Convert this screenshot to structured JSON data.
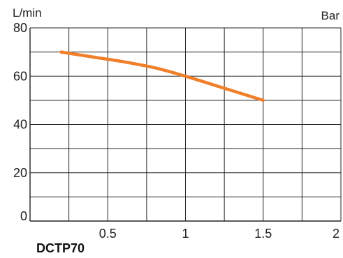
{
  "chart_data": {
    "type": "line",
    "title": "",
    "ylabel": "L/min",
    "xlabel": "Bar",
    "model": "DCTP70",
    "xlim": [
      0,
      2
    ],
    "ylim": [
      0,
      80
    ],
    "x_ticks": [
      0.5,
      1,
      1.5,
      2
    ],
    "x_tick_labels": [
      "0.5",
      "1",
      "1.5",
      "2"
    ],
    "x_grid_step": 0.25,
    "y_ticks": [
      0,
      20,
      40,
      60,
      80
    ],
    "y_tick_labels": [
      "0",
      "20",
      "40",
      "60",
      "80"
    ],
    "y_grid_step": 10,
    "grid": true,
    "series": [
      {
        "color": "#f07f2a",
        "x": [
          0.2,
          0.4,
          0.6,
          0.8,
          1.0,
          1.2,
          1.3,
          1.5
        ],
        "y": [
          70,
          68,
          66,
          63.5,
          60,
          56,
          54,
          50
        ]
      }
    ]
  }
}
